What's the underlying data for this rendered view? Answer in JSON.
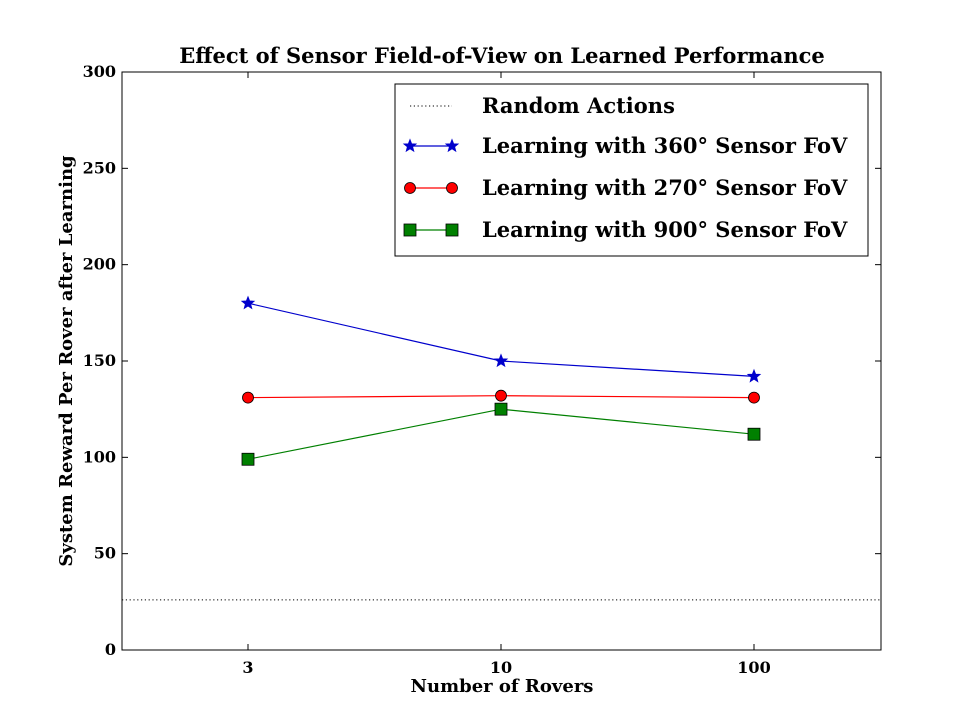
{
  "chart_data": {
    "type": "line",
    "title": "Effect of Sensor Field-of-View on Learned Performance",
    "xlabel": "Number of Rovers",
    "ylabel": "System Reward Per Rover after Learning",
    "categories": [
      "3",
      "10",
      "100"
    ],
    "ylim": [
      0,
      300
    ],
    "yticks": [
      0,
      50,
      100,
      150,
      200,
      250,
      300
    ],
    "grid": false,
    "legend_position": "top-right",
    "baseline": {
      "name": "Random Actions",
      "value": 26,
      "color": "#000000",
      "style": "dotted"
    },
    "series": [
      {
        "name": "Learning with 360° Sensor FoV",
        "values": [
          180,
          150,
          142
        ],
        "color": "#0000cc",
        "marker": "star"
      },
      {
        "name": "Learning with 270° Sensor FoV",
        "values": [
          131,
          132,
          131
        ],
        "color": "#ff0000",
        "marker": "circle"
      },
      {
        "name": "Learning with 900° Sensor FoV",
        "values": [
          99,
          125,
          112
        ],
        "color": "#008000",
        "marker": "square"
      }
    ]
  }
}
